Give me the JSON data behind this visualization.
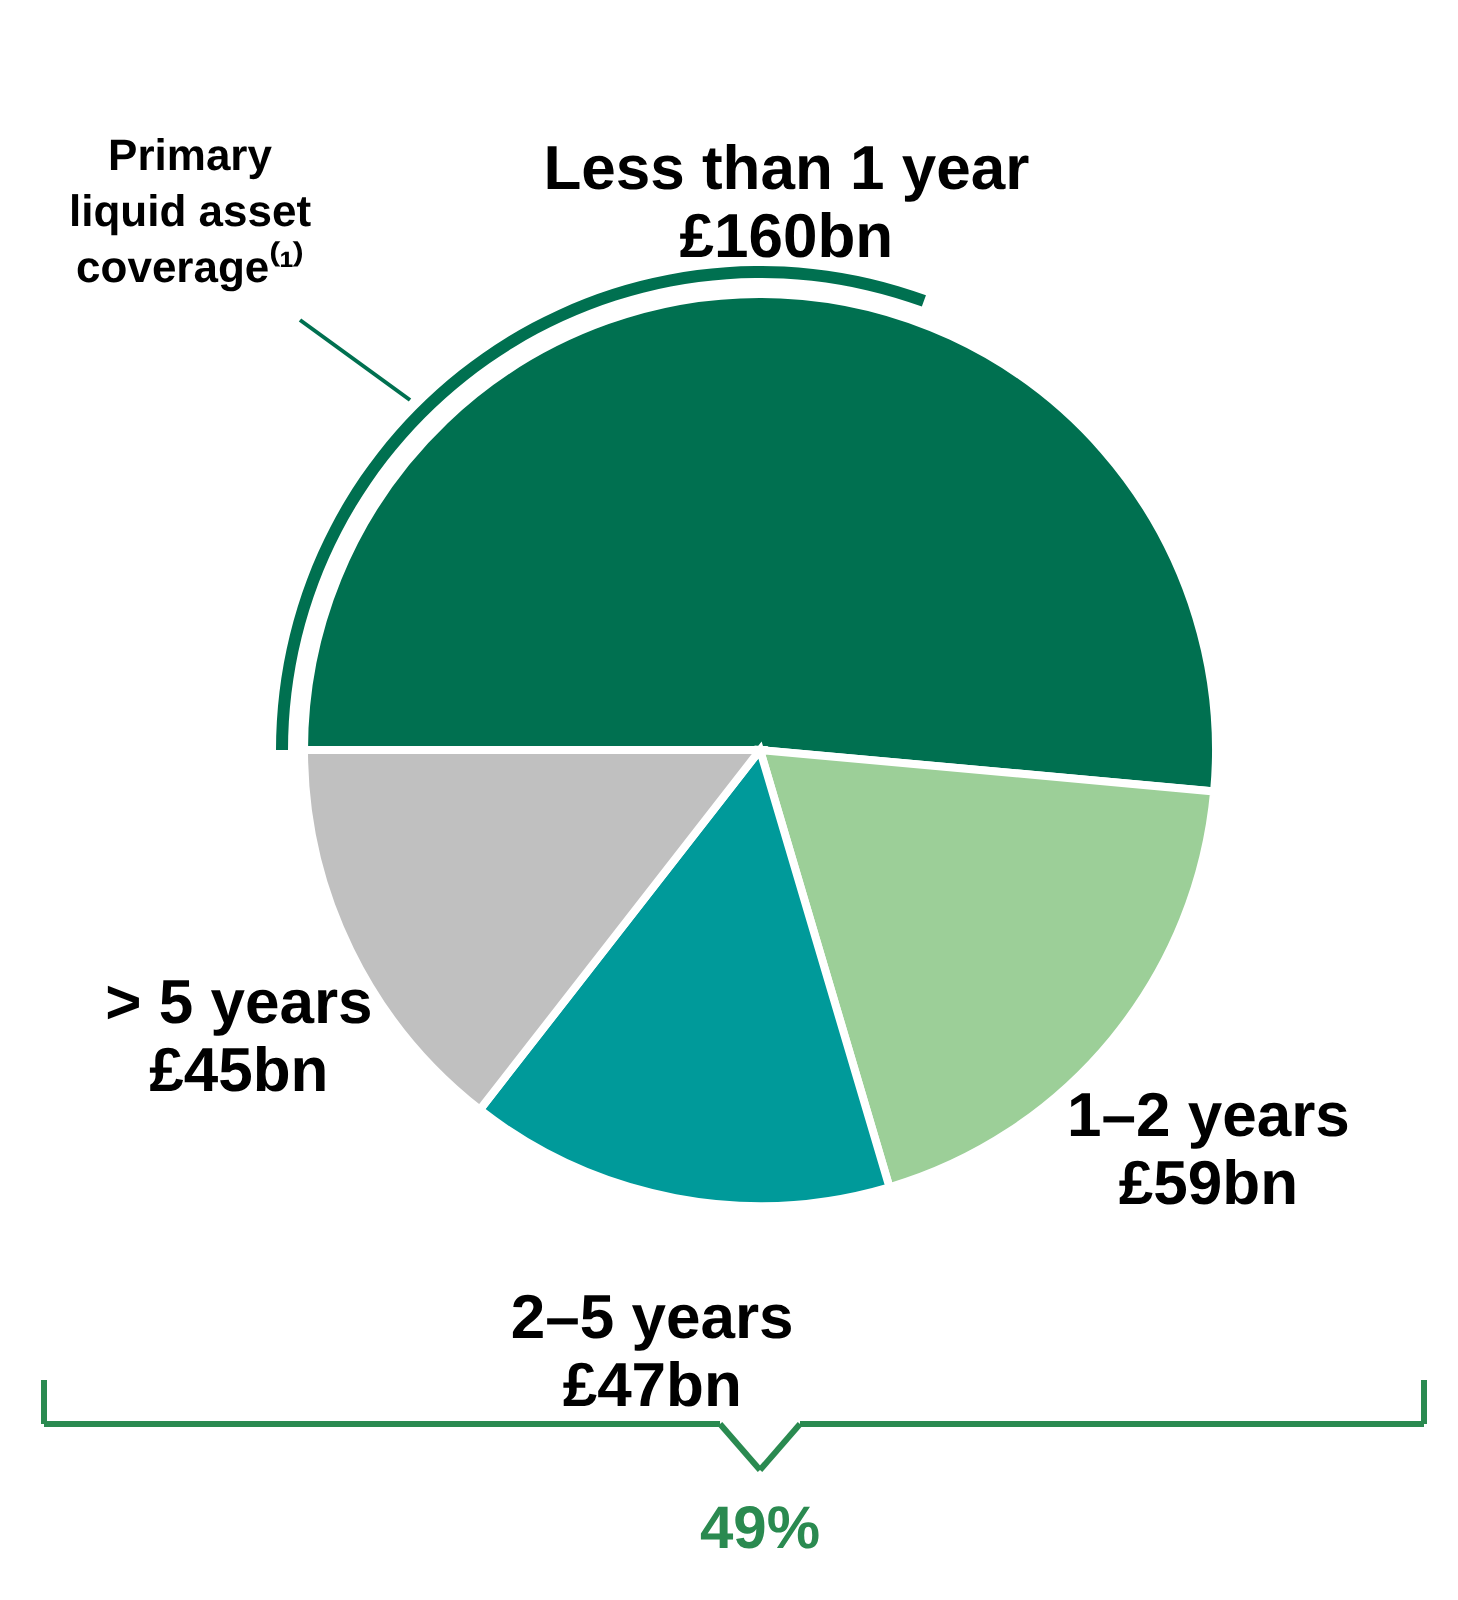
{
  "chart_data": {
    "type": "pie",
    "categories": [
      "Less than 1 year",
      "1–2 years",
      "2–5 years",
      "> 5 years"
    ],
    "values": [
      160,
      59,
      47,
      45
    ],
    "value_labels": [
      "£160bn",
      "£59bn",
      "£47bn",
      "£45bn"
    ],
    "colors": [
      "#007050",
      "#9ccf98",
      "#009a9a",
      "#c0c0c0"
    ],
    "annotations": [
      "Primary liquid asset coverage⁽¹⁾",
      "49%"
    ]
  }
}
